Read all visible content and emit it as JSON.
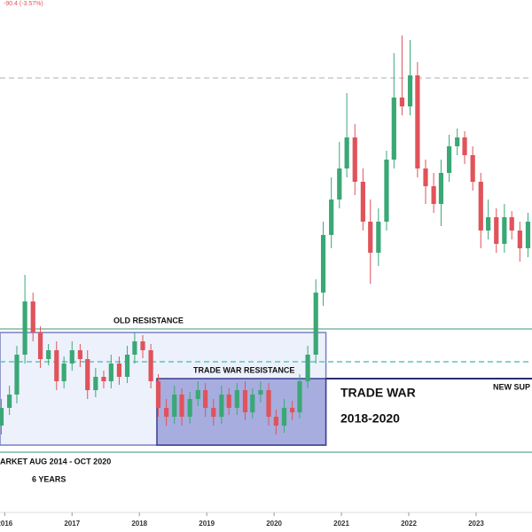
{
  "chart_data": {
    "type": "candlestick",
    "header": "-90.4 (-3.57%)",
    "annotations": [
      "OLD RESISTANCE",
      "TRADE WAR RESISTANCE",
      "TRADE WAR",
      "2018-2020",
      "NEW SUP",
      "ARKET AUG 2014 - OCT 2020",
      "6 YEARS"
    ],
    "xlim": [
      2015.93,
      2023.83
    ],
    "xticks": [
      2016,
      2017,
      2018,
      2019,
      2020,
      2021,
      2022,
      2023
    ],
    "ylim": [
      0,
      600
    ],
    "up_color": "#3aa876",
    "down_color": "#e0535a",
    "x": [
      2015.95,
      2016.07,
      2016.18,
      2016.3,
      2016.42,
      2016.53,
      2016.65,
      2016.77,
      2016.88,
      2017.0,
      2017.12,
      2017.23,
      2017.35,
      2017.47,
      2017.58,
      2017.7,
      2017.82,
      2017.93,
      2018.05,
      2018.17,
      2018.28,
      2018.4,
      2018.52,
      2018.63,
      2018.75,
      2018.87,
      2018.98,
      2019.1,
      2019.22,
      2019.33,
      2019.45,
      2019.57,
      2019.68,
      2019.8,
      2019.92,
      2020.03,
      2020.15,
      2020.27,
      2020.38,
      2020.5,
      2020.62,
      2020.73,
      2020.85,
      2020.97,
      2021.08,
      2021.2,
      2021.32,
      2021.43,
      2021.55,
      2021.67,
      2021.78,
      2021.9,
      2022.02,
      2022.13,
      2022.25,
      2022.37,
      2022.48,
      2022.6,
      2022.72,
      2022.83,
      2022.95,
      2023.07,
      2023.18,
      2023.3,
      2023.42,
      2023.53,
      2023.65,
      2023.77
    ],
    "open": [
      120,
      140,
      155,
      200,
      260,
      225,
      195,
      205,
      170,
      190,
      205,
      195,
      160,
      175,
      170,
      190,
      175,
      200,
      215,
      205,
      170,
      140,
      130,
      155,
      130,
      150,
      160,
      140,
      130,
      155,
      140,
      160,
      135,
      155,
      160,
      130,
      120,
      140,
      135,
      170,
      200,
      270,
      335,
      375,
      410,
      445,
      395,
      350,
      315,
      350,
      420,
      490,
      480,
      515,
      410,
      390,
      370,
      405,
      435,
      445,
      425,
      395,
      340,
      355,
      325,
      355,
      340,
      320
    ],
    "high": [
      150,
      165,
      210,
      290,
      270,
      232,
      212,
      215,
      198,
      215,
      212,
      205,
      185,
      182,
      200,
      198,
      210,
      225,
      222,
      212,
      178,
      150,
      165,
      162,
      158,
      170,
      168,
      150,
      165,
      162,
      168,
      170,
      162,
      170,
      168,
      138,
      150,
      148,
      178,
      210,
      285,
      350,
      400,
      440,
      495,
      460,
      410,
      375,
      365,
      430,
      540,
      560,
      555,
      530,
      420,
      405,
      420,
      448,
      455,
      452,
      435,
      405,
      375,
      365,
      370,
      362,
      350,
      360
    ],
    "low": [
      110,
      132,
      145,
      190,
      215,
      185,
      188,
      160,
      162,
      182,
      186,
      150,
      152,
      162,
      162,
      166,
      168,
      190,
      196,
      162,
      130,
      120,
      122,
      120,
      122,
      142,
      130,
      120,
      122,
      132,
      132,
      126,
      128,
      146,
      120,
      110,
      112,
      126,
      128,
      162,
      190,
      255,
      320,
      365,
      400,
      380,
      340,
      280,
      300,
      340,
      410,
      470,
      470,
      400,
      370,
      360,
      345,
      395,
      425,
      415,
      385,
      320,
      330,
      315,
      315,
      330,
      305,
      310
    ],
    "close": [
      140,
      155,
      200,
      260,
      225,
      195,
      205,
      170,
      190,
      205,
      195,
      160,
      175,
      170,
      190,
      175,
      200,
      215,
      205,
      170,
      140,
      130,
      155,
      130,
      150,
      160,
      140,
      130,
      155,
      140,
      160,
      135,
      155,
      160,
      130,
      120,
      140,
      135,
      170,
      200,
      270,
      335,
      375,
      410,
      445,
      395,
      350,
      315,
      350,
      420,
      490,
      480,
      515,
      410,
      390,
      370,
      405,
      435,
      445,
      425,
      395,
      340,
      355,
      325,
      355,
      340,
      320,
      350
    ],
    "zones": [
      {
        "x": [
          2015.93,
          2020.77
        ],
        "y": [
          98,
          225
        ],
        "color": "#e6ebfb",
        "stroke": "#7a7fc0"
      },
      {
        "x": [
          2018.26,
          2020.77
        ],
        "y": [
          98,
          173
        ],
        "color": "#8f95d6",
        "stroke": "#3a3f8f"
      }
    ],
    "hlines": [
      {
        "value": 229,
        "color": "#7fb8a4"
      },
      {
        "value": 192,
        "color": "#5cc4c4",
        "dash": true
      },
      {
        "value": 90,
        "color": "#7fb8a4"
      },
      {
        "value": 512,
        "color": "#cccccc",
        "dash": true
      },
      {
        "value": 173,
        "color": "#2a2d6e",
        "x": [
          2020.77,
          2023.83
        ]
      }
    ]
  }
}
